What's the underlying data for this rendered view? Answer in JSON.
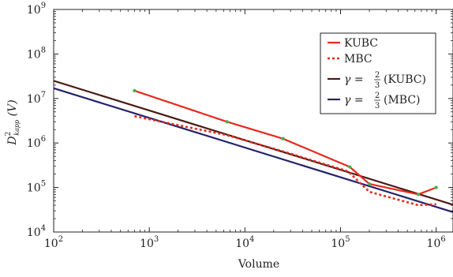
{
  "chart_data": {
    "type": "line",
    "title": "",
    "xlabel": "Volume",
    "ylabel": "D^2_{k_{app}}(V)",
    "ylabel_parts": {
      "base": "D",
      "sup": "2",
      "sub": "kapp",
      "suffix": "(V)"
    },
    "xscale": "log",
    "yscale": "log",
    "xlim": [
      100,
      1500000
    ],
    "ylim": [
      10000,
      1000000000
    ],
    "x_ticks": [
      {
        "value": 100,
        "base": "10",
        "exp": "2"
      },
      {
        "value": 1000,
        "base": "10",
        "exp": "3"
      },
      {
        "value": 10000,
        "base": "10",
        "exp": "4"
      },
      {
        "value": 100000,
        "base": "10",
        "exp": "5"
      },
      {
        "value": 1000000,
        "base": "10",
        "exp": "6"
      }
    ],
    "y_ticks": [
      {
        "value": 10000,
        "base": "10",
        "exp": "4"
      },
      {
        "value": 100000,
        "base": "10",
        "exp": "5"
      },
      {
        "value": 1000000,
        "base": "10",
        "exp": "6"
      },
      {
        "value": 10000000,
        "base": "10",
        "exp": "7"
      },
      {
        "value": 100000000,
        "base": "10",
        "exp": "8"
      },
      {
        "value": 1000000000,
        "base": "10",
        "exp": "9"
      }
    ],
    "grid": false,
    "legend_position": "top-right",
    "series": [
      {
        "name": "KUBC",
        "color": "#e8291c",
        "style": "solid",
        "marker_color": "#4caf50",
        "x": [
          700,
          6500,
          25000,
          125000,
          200000,
          650000,
          1000000
        ],
        "y": [
          15000000,
          3000000,
          1250000,
          290000,
          120000,
          70000,
          100000
        ]
      },
      {
        "name": "MBC",
        "color": "#e8291c",
        "style": "dotted",
        "x": [
          700,
          6500,
          25000,
          120000,
          200000,
          650000,
          1000000
        ],
        "y": [
          4000000,
          1500000,
          650000,
          230000,
          80000,
          40000,
          42000
        ]
      },
      {
        "name": "γ = 2/3 (KUBC)",
        "legend": {
          "lead": "γ = ",
          "num": "2",
          "den": "3",
          "tail": "(KUBC)"
        },
        "color": "#4a1a14",
        "style": "solid",
        "x": [
          100,
          1500000
        ],
        "y": [
          25000000,
          41000
        ]
      },
      {
        "name": "γ = 2/3 (MBC)",
        "legend": {
          "lead": "γ = ",
          "num": "2",
          "den": "3",
          "tail": "(MBC)"
        },
        "color": "#23236b",
        "style": "solid",
        "x": [
          100,
          1500000
        ],
        "y": [
          17000000,
          28000
        ]
      }
    ]
  }
}
